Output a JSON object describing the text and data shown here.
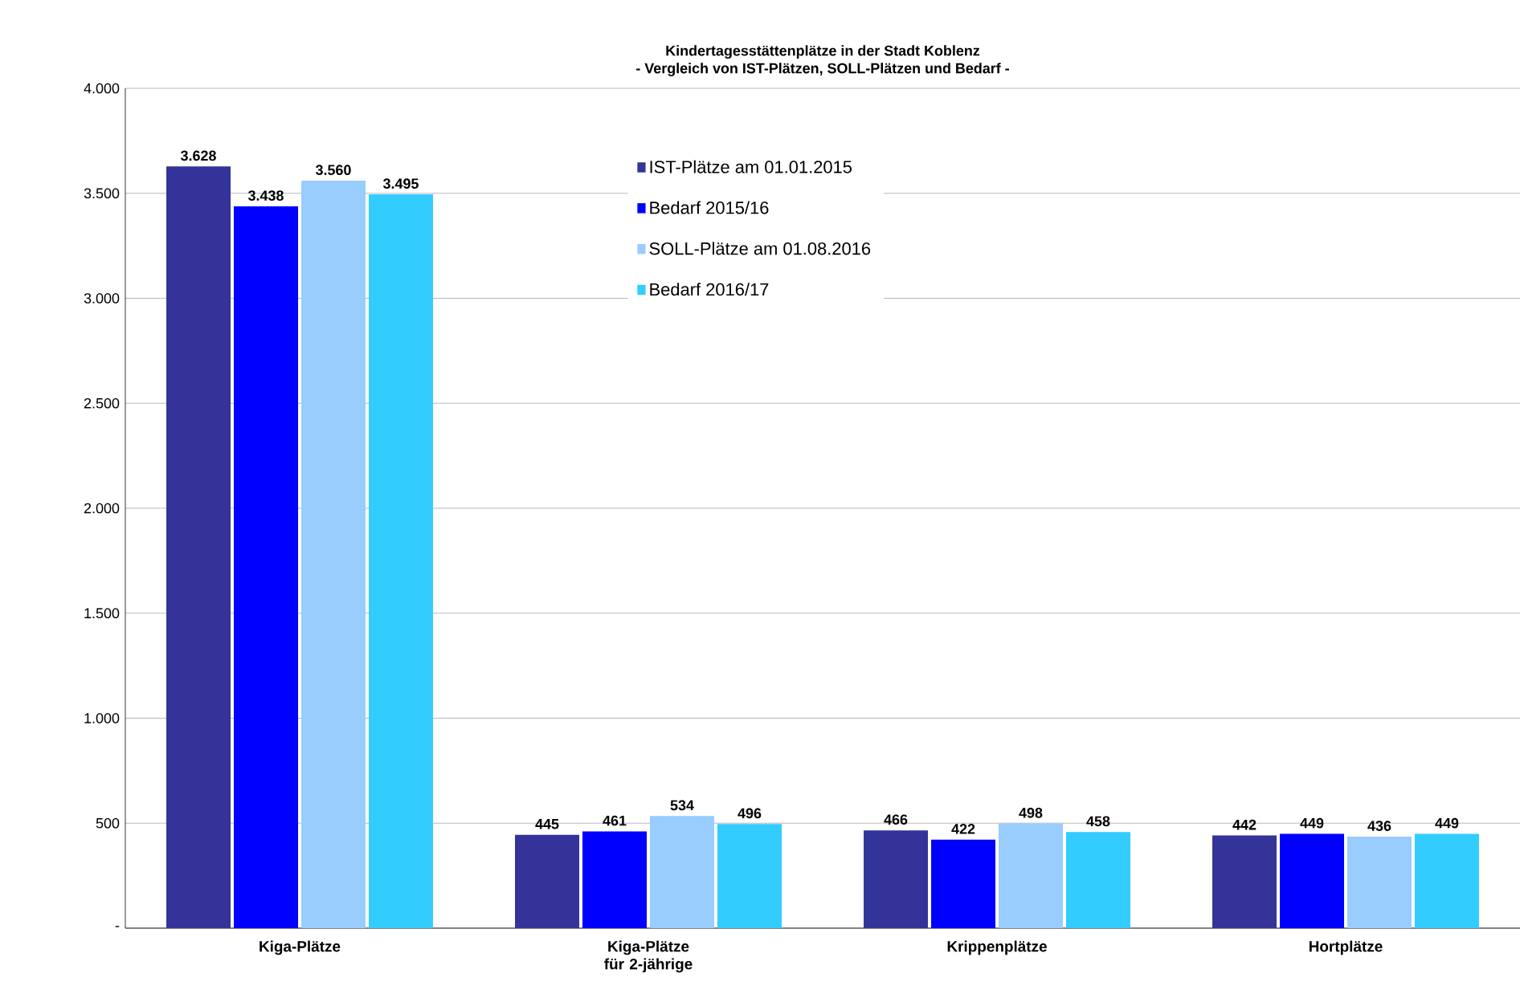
{
  "chart_data": {
    "type": "bar",
    "title": "Kindertagesstättenplätze in der Stadt Koblenz",
    "subtitle": "- Vergleich von IST-Plätzen, SOLL-Plätzen und Bedarf -",
    "categories": [
      "Kiga-Plätze",
      "Kiga-Plätze für 2-jährige",
      "Krippenplätze",
      "Hortplätze"
    ],
    "series": [
      {
        "name": "IST-Plätze am 01.01.2015",
        "color": "#333399",
        "values": [
          3628,
          445,
          466,
          442
        ],
        "value_labels": [
          "3.628",
          "445",
          "466",
          "442"
        ]
      },
      {
        "name": "Bedarf 2015/16",
        "color": "#0000ff",
        "values": [
          3438,
          461,
          422,
          449
        ],
        "value_labels": [
          "3.438",
          "461",
          "422",
          "449"
        ]
      },
      {
        "name": "SOLL-Plätze am 01.08.2016",
        "color": "#99ccff",
        "values": [
          3560,
          534,
          498,
          436
        ],
        "value_labels": [
          "3.560",
          "534",
          "498",
          "436"
        ]
      },
      {
        "name": "Bedarf 2016/17",
        "color": "#33ccff",
        "values": [
          3495,
          496,
          458,
          449
        ],
        "value_labels": [
          "3.495",
          "496",
          "458",
          "449"
        ]
      }
    ],
    "ylim": [
      0,
      4000
    ],
    "yticks": [
      {
        "value": 0,
        "label": "-"
      },
      {
        "value": 500,
        "label": "500"
      },
      {
        "value": 1000,
        "label": "1.000"
      },
      {
        "value": 1500,
        "label": "1.500"
      },
      {
        "value": 2000,
        "label": "2.000"
      },
      {
        "value": 2500,
        "label": "2.500"
      },
      {
        "value": 3000,
        "label": "3.000"
      },
      {
        "value": 3500,
        "label": "3.500"
      },
      {
        "value": 4000,
        "label": "4.000"
      }
    ],
    "grid": "y",
    "legend": "top"
  }
}
